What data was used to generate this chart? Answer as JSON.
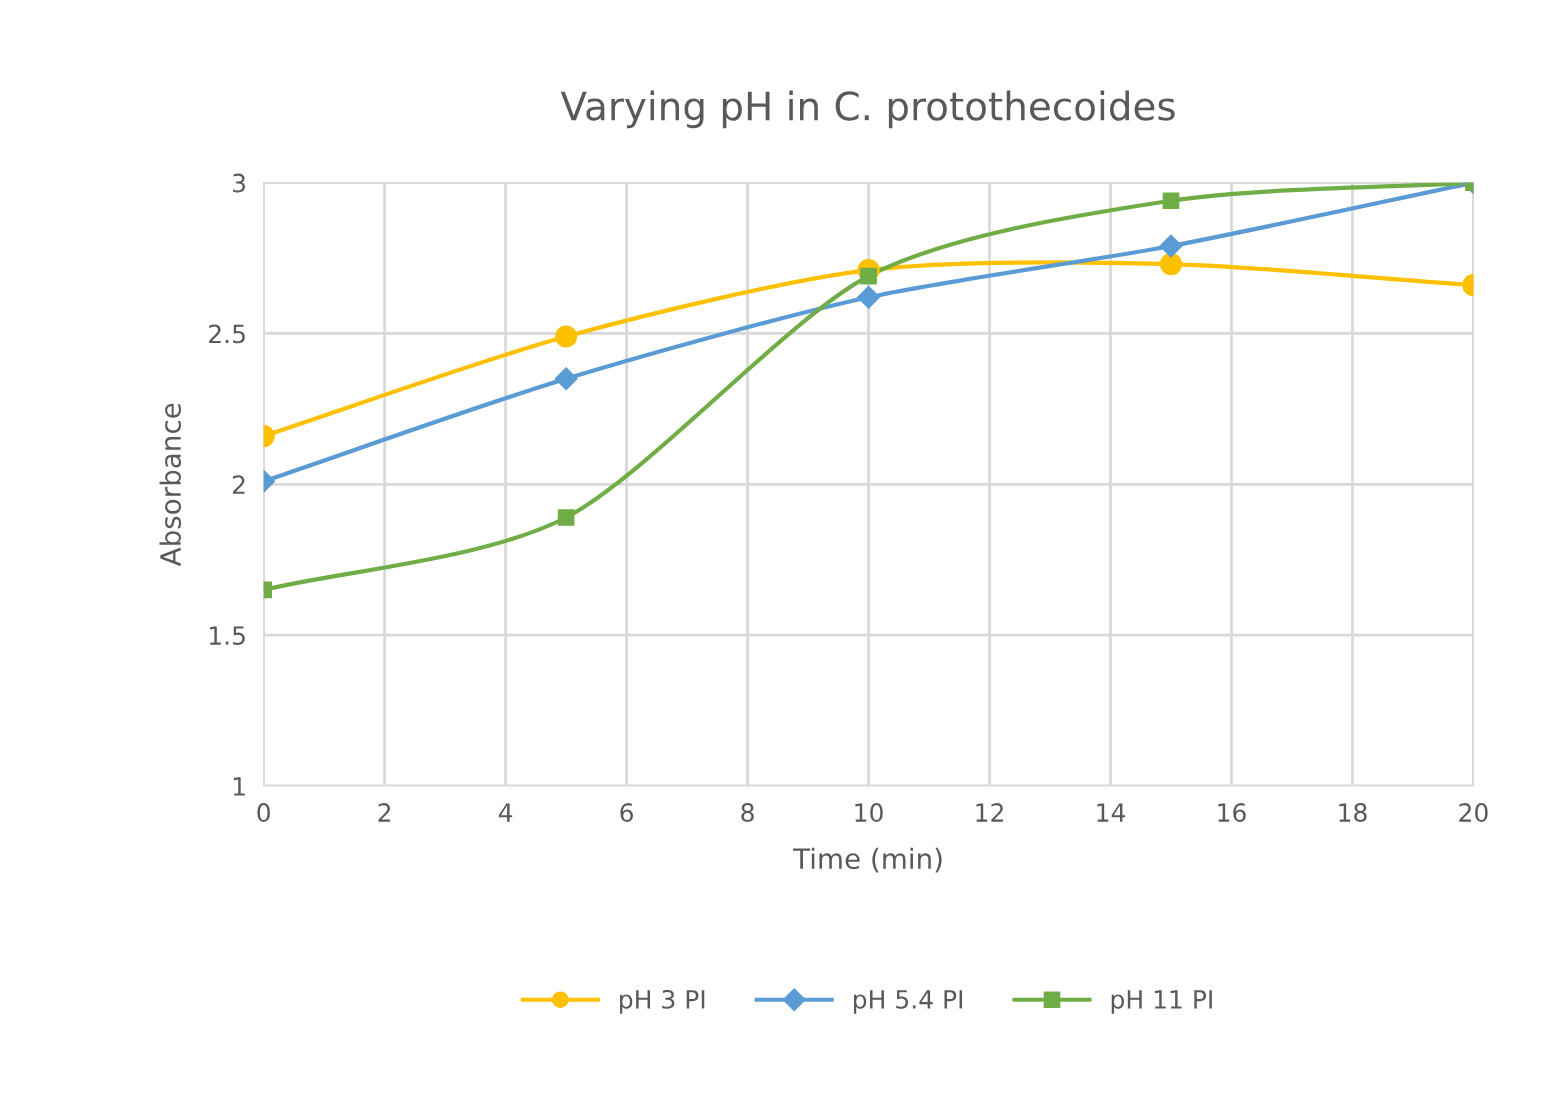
{
  "chart_data": {
    "type": "line",
    "title": "Varying pH in C. protothecoides",
    "xlabel": "Time (min)",
    "ylabel": "Absorbance",
    "x": [
      0,
      5,
      10,
      15,
      20
    ],
    "series": [
      {
        "name": "pH 3 PI",
        "color": "#ffc000",
        "marker": "circle",
        "values": [
          2.16,
          2.49,
          2.71,
          2.73,
          2.66
        ]
      },
      {
        "name": "pH 5.4 PI",
        "color": "#5b9bd5",
        "marker": "diamond",
        "values": [
          2.01,
          2.35,
          2.62,
          2.79,
          3.0
        ]
      },
      {
        "name": "pH 11 PI",
        "color": "#70ad47",
        "marker": "square",
        "values": [
          1.65,
          1.89,
          2.69,
          2.94,
          3.0
        ]
      }
    ],
    "xlim": [
      0,
      20
    ],
    "xticks": [
      0,
      2,
      4,
      6,
      8,
      10,
      12,
      14,
      16,
      18,
      20
    ],
    "ylim": [
      1,
      3
    ],
    "yticks": [
      1,
      1.5,
      2,
      2.5,
      3
    ],
    "grid": true,
    "legend": "bottom",
    "line_style": "solid"
  }
}
